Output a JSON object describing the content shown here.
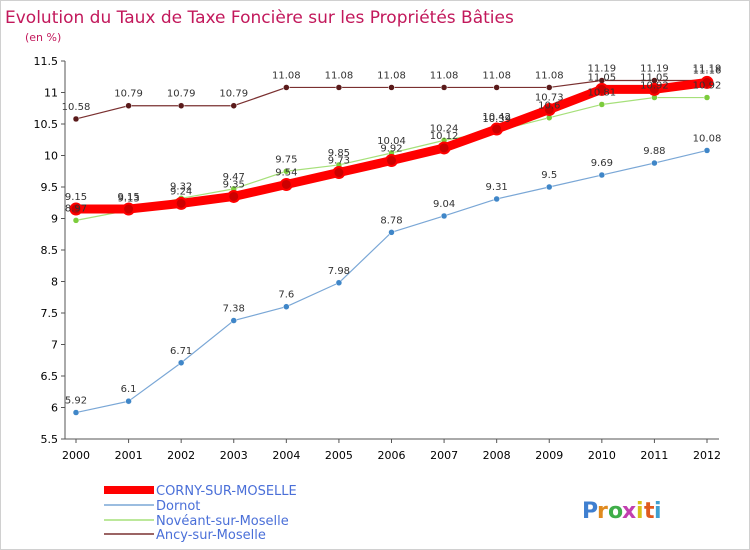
{
  "chart_data": {
    "type": "line",
    "title": "Evolution du Taux de Taxe Foncière sur les Propriétés Bâties",
    "subtitle": "(en %)",
    "xlabel": "",
    "ylabel": "",
    "ylim": [
      5.5,
      11.5
    ],
    "yticks": [
      "11.5",
      "11",
      "10.5",
      "10",
      "9.5",
      "9",
      "8.5",
      "8",
      "7.5",
      "7",
      "6.5",
      "6",
      "5.5"
    ],
    "categories": [
      "2000",
      "2001",
      "2002",
      "2003",
      "2004",
      "2005",
      "2006",
      "2007",
      "2008",
      "2009",
      "2010",
      "2011",
      "2012"
    ],
    "grid": false,
    "legend_position": "bottom-left",
    "series": [
      {
        "name": "CORNY-SUR-MOSELLE",
        "color": "#ff0000",
        "marker_color": "#cc0000",
        "values": [
          9.15,
          9.15,
          9.24,
          9.35,
          9.54,
          9.73,
          9.92,
          10.12,
          10.42,
          10.73,
          11.05,
          11.05,
          11.16
        ],
        "labels": [
          "9.15",
          "9.15",
          "9.24",
          "9.35",
          "9.54",
          "9.73",
          "9.92",
          "10.12",
          "10.42",
          "10.73",
          "11.05",
          "11.05",
          "11.16"
        ]
      },
      {
        "name": "Dornot",
        "color": "#7aa7d6",
        "marker_color": "#3f86c8",
        "values": [
          5.92,
          6.1,
          6.71,
          7.38,
          7.6,
          7.98,
          8.78,
          9.04,
          9.31,
          9.5,
          9.69,
          9.88,
          10.08
        ],
        "labels": [
          "5.92",
          "6.1",
          "6.71",
          "7.38",
          "7.6",
          "7.98",
          "8.78",
          "9.04",
          "9.31",
          "9.5",
          "9.69",
          "9.88",
          "10.08"
        ]
      },
      {
        "name": "Novéant-sur-Moselle",
        "color": "#a6e07a",
        "marker_color": "#7ccc3c",
        "values": [
          8.97,
          9.13,
          9.32,
          9.47,
          9.75,
          9.85,
          10.04,
          10.24,
          10.39,
          10.6,
          10.81,
          10.92,
          10.92
        ],
        "labels": [
          "8.97",
          "9.13",
          "9.32",
          "9.47",
          "9.75",
          "9.85",
          "10.04",
          "10.24",
          "10.39",
          "10.6",
          "10.81",
          "10.92",
          "10.92"
        ]
      },
      {
        "name": "Ancy-sur-Moselle",
        "color": "#7a3030",
        "marker_color": "#5a1a1a",
        "values": [
          10.58,
          10.79,
          10.79,
          10.79,
          11.08,
          11.08,
          11.08,
          11.08,
          11.08,
          11.08,
          11.19,
          11.19,
          11.19
        ],
        "labels": [
          "10.58",
          "10.79",
          "10.79",
          "10.79",
          "11.08",
          "11.08",
          "11.08",
          "11.08",
          "11.08",
          "11.08",
          "11.19",
          "11.19",
          "11.19"
        ]
      }
    ]
  },
  "logo": {
    "letters": [
      "P",
      "r",
      "o",
      "x",
      "i",
      "t",
      "i"
    ],
    "colors": [
      "#3f7fd0",
      "#e08a1e",
      "#3fae49",
      "#c23fb0",
      "#d8c018",
      "#e05a1e",
      "#3f9fd0"
    ]
  }
}
